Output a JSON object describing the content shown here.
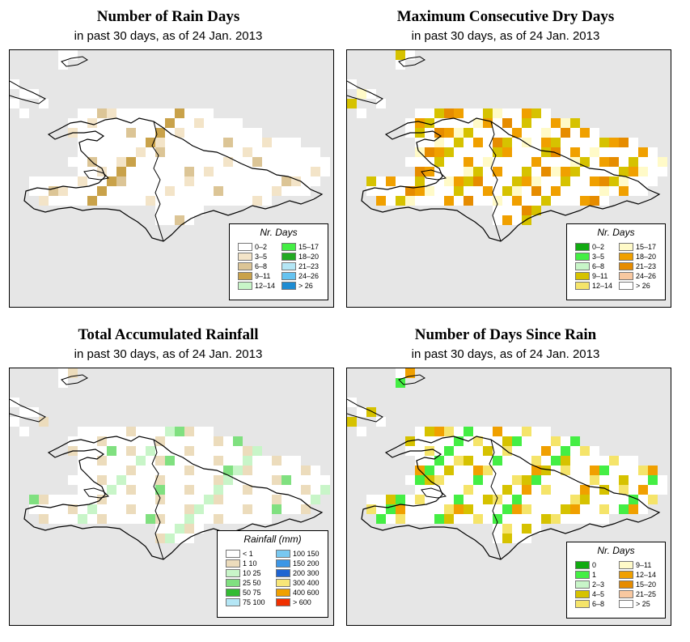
{
  "panels": [
    {
      "id": "rain-days",
      "title": "Number of Rain Days",
      "subtitle": "in past 30 days, as of  24 Jan. 2013",
      "legend": {
        "title": "Nr. Days",
        "items": [
          {
            "label": "0–2",
            "color": "#ffffff"
          },
          {
            "label": "3–5",
            "color": "#f3e4c8"
          },
          {
            "label": "6–8",
            "color": "#dcc596"
          },
          {
            "label": "9–11",
            "color": "#c9a24a"
          },
          {
            "label": "12–14",
            "color": "#c8f5c8"
          },
          {
            "label": "15–17",
            "color": "#44ee44"
          },
          {
            "label": "18–20",
            "color": "#22aa22"
          },
          {
            "label": "21–23",
            "color": "#b4e6f5"
          },
          {
            "label": "24–26",
            "color": "#66c3f0"
          },
          {
            "label": "> 26",
            "color": "#1e8cd2"
          }
        ]
      }
    },
    {
      "id": "max-dry-days",
      "title": "Maximum Consecutive Dry Days",
      "subtitle": "in past 30 days, as of  24 Jan. 2013",
      "legend": {
        "title": "Nr. Days",
        "items": [
          {
            "label": "0–2",
            "color": "#11aa11"
          },
          {
            "label": "3–5",
            "color": "#44ee44"
          },
          {
            "label": "6–8",
            "color": "#c8f5c8"
          },
          {
            "label": "9–11",
            "color": "#d6c200"
          },
          {
            "label": "12–14",
            "color": "#f5e46a"
          },
          {
            "label": "15–17",
            "color": "#fffac8"
          },
          {
            "label": "18–20",
            "color": "#f0a000"
          },
          {
            "label": "21–23",
            "color": "#e68c00"
          },
          {
            "label": "24–26",
            "color": "#f8c8a0"
          },
          {
            "label": "> 26",
            "color": "#ffffff"
          }
        ]
      }
    },
    {
      "id": "total-rainfall",
      "title": "Total Accumulated Rainfall",
      "subtitle": "in past 30 days, as of  24 Jan. 2013",
      "legend": {
        "title": "Rainfall (mm)",
        "items": [
          {
            "label": "< 1",
            "color": "#ffffff"
          },
          {
            "label": "1   10",
            "color": "#ecdcbc"
          },
          {
            "label": "10   25",
            "color": "#c8f5c8"
          },
          {
            "label": "25   50",
            "color": "#80e080"
          },
          {
            "label": "50   75",
            "color": "#33bb33"
          },
          {
            "label": "75  100",
            "color": "#b4e6f5"
          },
          {
            "label": "100  150",
            "color": "#78c8f0"
          },
          {
            "label": "150  200",
            "color": "#3c96e6"
          },
          {
            "label": "200  300",
            "color": "#1e64d2"
          },
          {
            "label": "300  400",
            "color": "#f8e678"
          },
          {
            "label": "400  600",
            "color": "#f0a000"
          },
          {
            "label": "> 600",
            "color": "#f03000"
          }
        ]
      }
    },
    {
      "id": "days-since-rain",
      "title": "Number of Days Since Rain",
      "subtitle": "in past 30 days, as of  24 Jan. 2013",
      "legend": {
        "title": "Nr. Days",
        "items": [
          {
            "label": "0",
            "color": "#11aa11"
          },
          {
            "label": "1",
            "color": "#44ee44"
          },
          {
            "label": "2–3",
            "color": "#c8f5c8"
          },
          {
            "label": "4–5",
            "color": "#d6c200"
          },
          {
            "label": "6–8",
            "color": "#f5e46a"
          },
          {
            "label": "9–11",
            "color": "#fffac8"
          },
          {
            "label": "12–14",
            "color": "#f0a000"
          },
          {
            "label": "15–20",
            "color": "#e68c00"
          },
          {
            "label": "21–25",
            "color": "#f8c8a0"
          },
          {
            "label": "> 25",
            "color": "#ffffff"
          }
        ]
      }
    }
  ]
}
